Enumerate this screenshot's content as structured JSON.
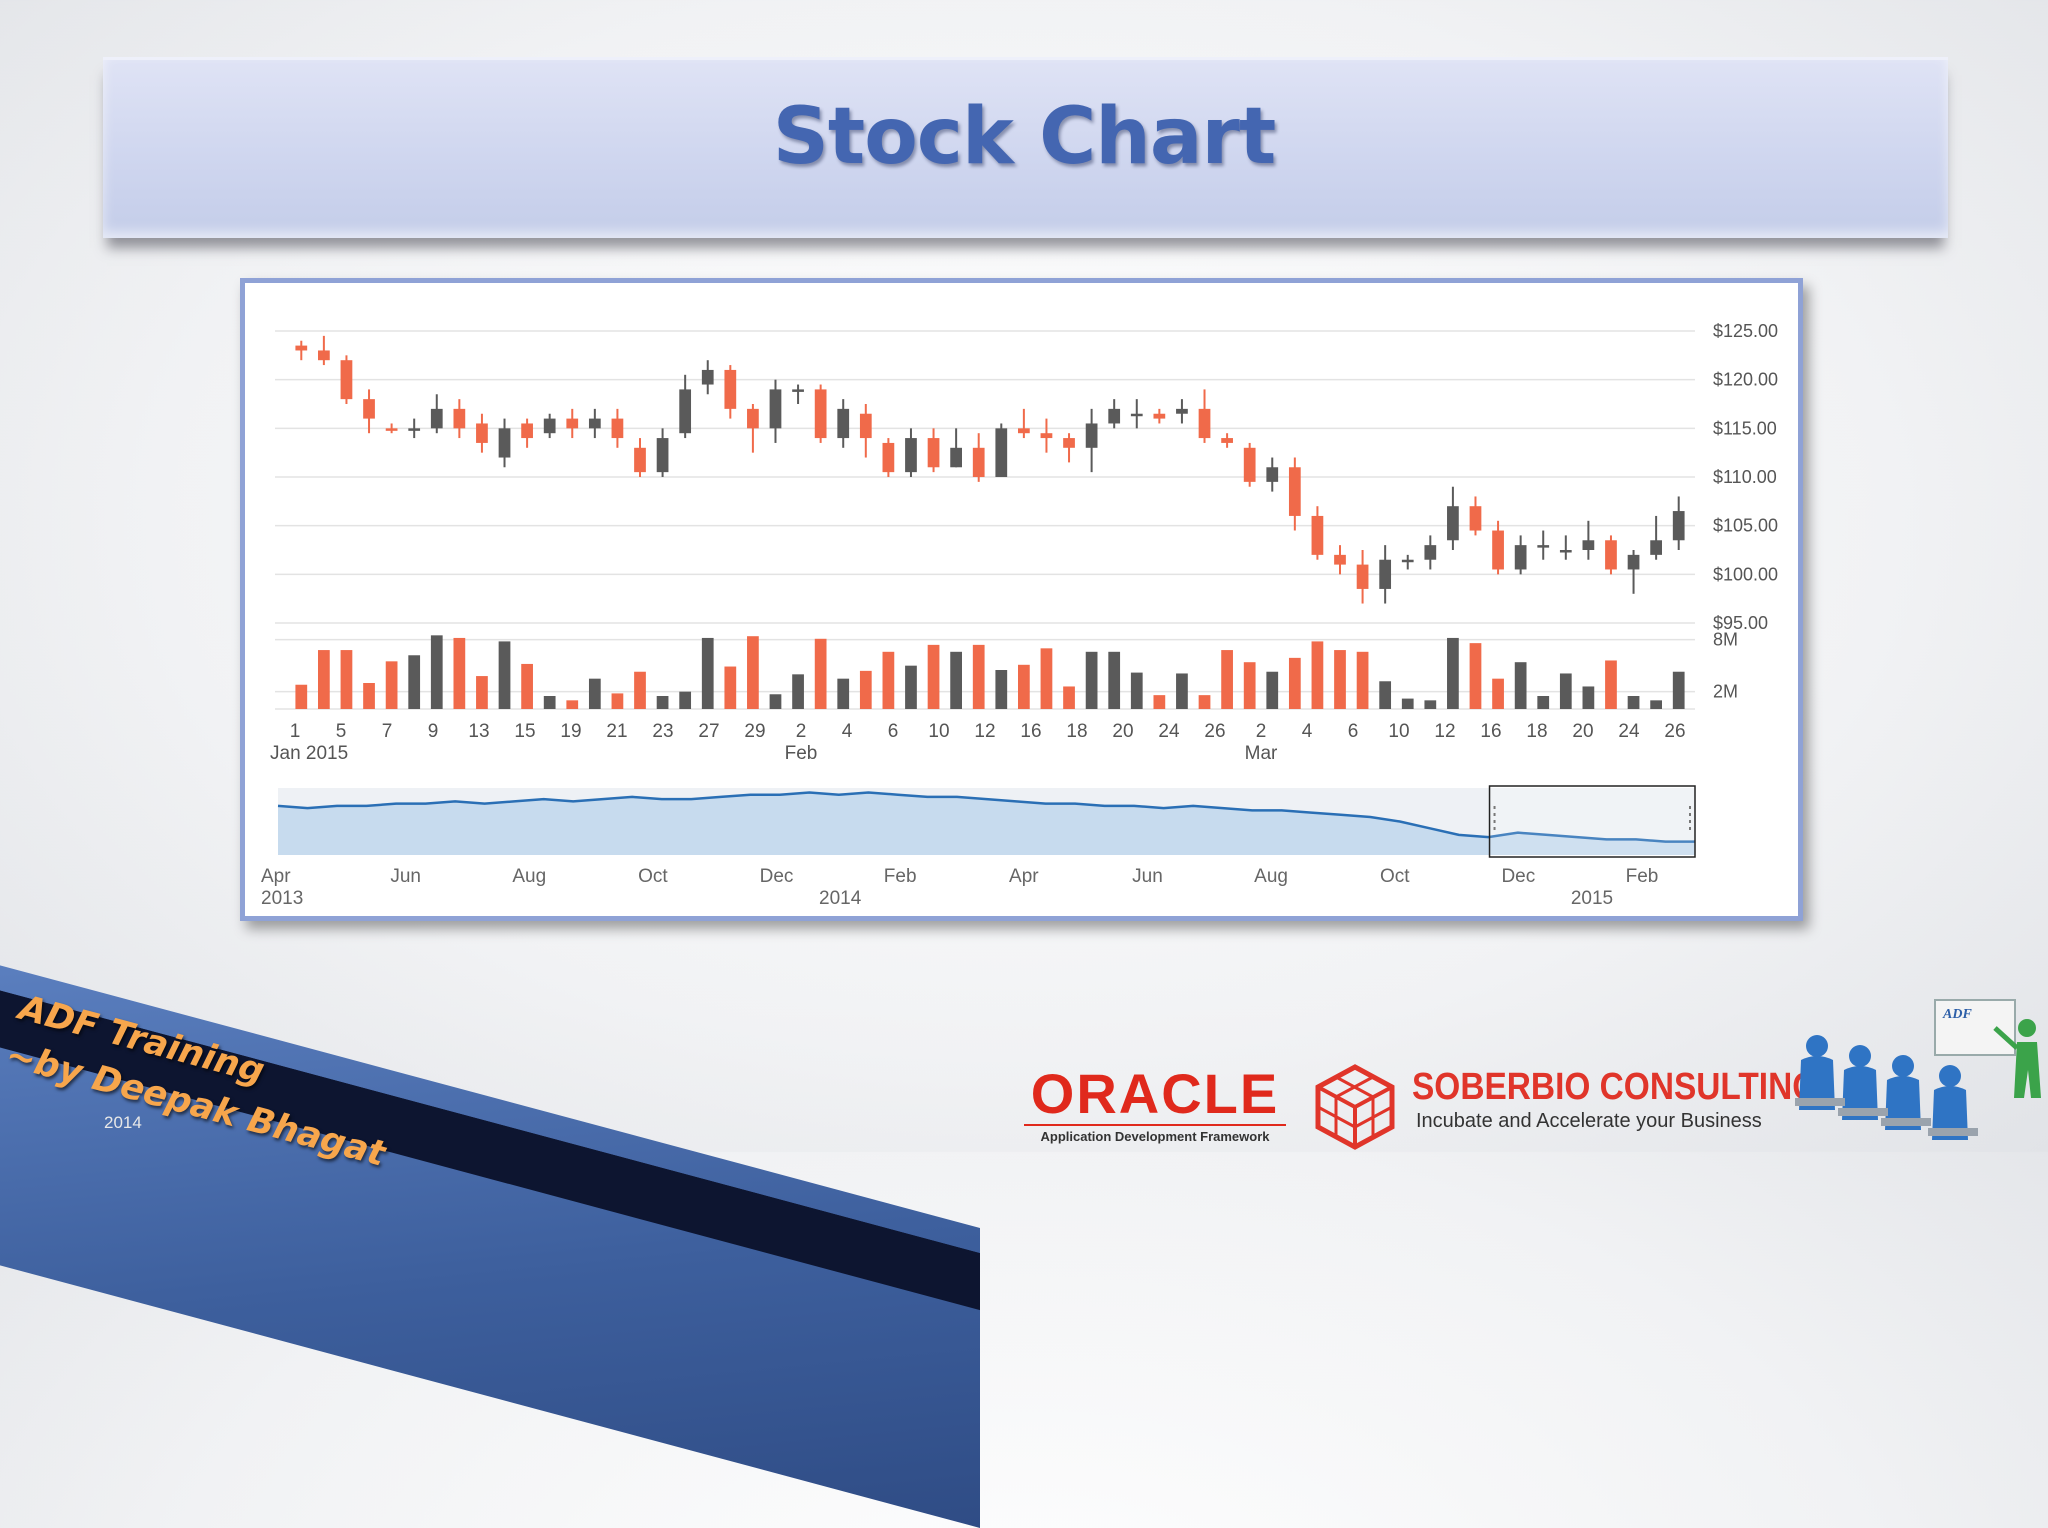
{
  "slide": {
    "title": "Stock Chart"
  },
  "colors": {
    "up": "#5a5a5a",
    "down": "#f06a4a",
    "overview_line": "#2a6fb5",
    "overview_fill": "#c7dbee",
    "title": "#4466b1"
  },
  "chart_data": {
    "type": "candlestick",
    "title": "",
    "y_axis": {
      "ticks": [
        "$125.00",
        "$120.00",
        "$115.00",
        "$110.00",
        "$105.00",
        "$100.00",
        "$95.00"
      ],
      "range": [
        95,
        125
      ]
    },
    "volume_axis": {
      "ticks": [
        "8M",
        "2M"
      ]
    },
    "x_labels": [
      "1",
      "5",
      "7",
      "9",
      "13",
      "15",
      "19",
      "21",
      "23",
      "27",
      "29",
      "2",
      "4",
      "6",
      "10",
      "12",
      "16",
      "18",
      "20",
      "24",
      "26",
      "2",
      "4",
      "6",
      "10",
      "12",
      "16",
      "18",
      "20",
      "24",
      "26"
    ],
    "x_sublabels": [
      {
        "at_index": 0,
        "text": "Jan 2015"
      },
      {
        "at_index": 11,
        "text": "Feb"
      },
      {
        "at_index": 21,
        "text": "Mar"
      }
    ],
    "candles": [
      {
        "o": 123.5,
        "c": 123.0,
        "h": 124.0,
        "l": 122.0,
        "v": 2.8
      },
      {
        "o": 123.0,
        "c": 122.0,
        "h": 124.5,
        "l": 121.5,
        "v": 6.8
      },
      {
        "o": 122.0,
        "c": 118.0,
        "h": 122.5,
        "l": 117.5,
        "v": 6.8
      },
      {
        "o": 118.0,
        "c": 116.0,
        "h": 119.0,
        "l": 114.5,
        "v": 3.0
      },
      {
        "o": 115.0,
        "c": 114.8,
        "h": 115.5,
        "l": 114.5,
        "v": 5.5
      },
      {
        "o": 114.8,
        "c": 115.0,
        "h": 116.0,
        "l": 114.0,
        "v": 6.2
      },
      {
        "o": 115.0,
        "c": 117.0,
        "h": 118.5,
        "l": 114.5,
        "v": 8.5
      },
      {
        "o": 117.0,
        "c": 115.0,
        "h": 118.0,
        "l": 114.0,
        "v": 8.2
      },
      {
        "o": 115.5,
        "c": 113.5,
        "h": 116.5,
        "l": 112.5,
        "v": 3.8
      },
      {
        "o": 112.0,
        "c": 115.0,
        "h": 116.0,
        "l": 111.0,
        "v": 7.8
      },
      {
        "o": 115.5,
        "c": 114.0,
        "h": 116.0,
        "l": 113.0,
        "v": 5.2
      },
      {
        "o": 114.5,
        "c": 116.0,
        "h": 116.5,
        "l": 114.0,
        "v": 1.5
      },
      {
        "o": 116.0,
        "c": 115.0,
        "h": 117.0,
        "l": 114.0,
        "v": 1.0
      },
      {
        "o": 115.0,
        "c": 116.0,
        "h": 117.0,
        "l": 114.0,
        "v": 3.5
      },
      {
        "o": 116.0,
        "c": 114.0,
        "h": 117.0,
        "l": 113.0,
        "v": 1.8
      },
      {
        "o": 113.0,
        "c": 110.5,
        "h": 114.0,
        "l": 110.0,
        "v": 4.3
      },
      {
        "o": 110.5,
        "c": 114.0,
        "h": 115.0,
        "l": 110.0,
        "v": 1.5
      },
      {
        "o": 114.5,
        "c": 119.0,
        "h": 120.5,
        "l": 114.0,
        "v": 2.0
      },
      {
        "o": 119.5,
        "c": 121.0,
        "h": 122.0,
        "l": 118.5,
        "v": 8.2
      },
      {
        "o": 121.0,
        "c": 117.0,
        "h": 121.5,
        "l": 116.0,
        "v": 4.9
      },
      {
        "o": 117.0,
        "c": 115.0,
        "h": 117.5,
        "l": 112.5,
        "v": 8.4
      },
      {
        "o": 115.0,
        "c": 119.0,
        "h": 120.0,
        "l": 113.5,
        "v": 1.7
      },
      {
        "o": 119.0,
        "c": 119.0,
        "h": 119.5,
        "l": 117.5,
        "v": 4.0
      },
      {
        "o": 119.0,
        "c": 114.0,
        "h": 119.5,
        "l": 113.5,
        "v": 8.1
      },
      {
        "o": 114.0,
        "c": 117.0,
        "h": 118.0,
        "l": 113.0,
        "v": 3.5
      },
      {
        "o": 116.5,
        "c": 114.0,
        "h": 117.5,
        "l": 112.0,
        "v": 4.4
      },
      {
        "o": 113.5,
        "c": 110.5,
        "h": 114.0,
        "l": 110.0,
        "v": 6.6
      },
      {
        "o": 110.5,
        "c": 114.0,
        "h": 115.0,
        "l": 110.0,
        "v": 5.0
      },
      {
        "o": 114.0,
        "c": 111.0,
        "h": 115.0,
        "l": 110.5,
        "v": 7.4
      },
      {
        "o": 111.0,
        "c": 113.0,
        "h": 115.0,
        "l": 111.0,
        "v": 6.6
      },
      {
        "o": 113.0,
        "c": 110.0,
        "h": 114.5,
        "l": 109.5,
        "v": 7.4
      },
      {
        "o": 110.0,
        "c": 115.0,
        "h": 115.5,
        "l": 110.0,
        "v": 4.5
      },
      {
        "o": 115.0,
        "c": 114.5,
        "h": 117.0,
        "l": 114.0,
        "v": 5.1
      },
      {
        "o": 114.5,
        "c": 114.0,
        "h": 116.0,
        "l": 112.5,
        "v": 7.0
      },
      {
        "o": 114.0,
        "c": 113.0,
        "h": 114.5,
        "l": 111.5,
        "v": 2.6
      },
      {
        "o": 113.0,
        "c": 115.5,
        "h": 117.0,
        "l": 110.5,
        "v": 6.6
      },
      {
        "o": 115.5,
        "c": 117.0,
        "h": 118.0,
        "l": 115.0,
        "v": 6.6
      },
      {
        "o": 116.5,
        "c": 116.5,
        "h": 118.0,
        "l": 115.0,
        "v": 4.2
      },
      {
        "o": 116.5,
        "c": 116.0,
        "h": 117.0,
        "l": 115.5,
        "v": 1.6
      },
      {
        "o": 116.5,
        "c": 117.0,
        "h": 118.0,
        "l": 115.5,
        "v": 4.1
      },
      {
        "o": 117.0,
        "c": 114.0,
        "h": 119.0,
        "l": 113.5,
        "v": 1.6
      },
      {
        "o": 114.0,
        "c": 113.5,
        "h": 114.5,
        "l": 113.0,
        "v": 6.8
      },
      {
        "o": 113.0,
        "c": 109.5,
        "h": 113.5,
        "l": 109.0,
        "v": 5.4
      },
      {
        "o": 109.5,
        "c": 111.0,
        "h": 112.0,
        "l": 108.5,
        "v": 4.3
      },
      {
        "o": 111.0,
        "c": 106.0,
        "h": 112.0,
        "l": 104.5,
        "v": 5.9
      },
      {
        "o": 106.0,
        "c": 102.0,
        "h": 107.0,
        "l": 101.5,
        "v": 7.8
      },
      {
        "o": 102.0,
        "c": 101.0,
        "h": 103.0,
        "l": 100.0,
        "v": 6.8
      },
      {
        "o": 101.0,
        "c": 98.5,
        "h": 102.5,
        "l": 97.0,
        "v": 6.6
      },
      {
        "o": 98.5,
        "c": 101.5,
        "h": 103.0,
        "l": 97.0,
        "v": 3.2
      },
      {
        "o": 101.5,
        "c": 101.5,
        "h": 102.0,
        "l": 100.5,
        "v": 1.2
      },
      {
        "o": 101.5,
        "c": 103.0,
        "h": 104.0,
        "l": 100.5,
        "v": 1.0
      },
      {
        "o": 103.5,
        "c": 107.0,
        "h": 109.0,
        "l": 102.5,
        "v": 8.2
      },
      {
        "o": 107.0,
        "c": 104.5,
        "h": 108.0,
        "l": 104.0,
        "v": 7.6
      },
      {
        "o": 104.5,
        "c": 100.5,
        "h": 105.5,
        "l": 100.0,
        "v": 3.5
      },
      {
        "o": 100.5,
        "c": 103.0,
        "h": 104.0,
        "l": 100.0,
        "v": 5.4
      },
      {
        "o": 103.0,
        "c": 103.0,
        "h": 104.5,
        "l": 101.5,
        "v": 1.5
      },
      {
        "o": 102.5,
        "c": 102.5,
        "h": 104.0,
        "l": 101.5,
        "v": 4.1
      },
      {
        "o": 102.5,
        "c": 103.5,
        "h": 105.5,
        "l": 101.5,
        "v": 2.6
      },
      {
        "o": 103.5,
        "c": 100.5,
        "h": 104.0,
        "l": 100.0,
        "v": 5.6
      },
      {
        "o": 100.5,
        "c": 102.0,
        "h": 102.5,
        "l": 98.0,
        "v": 1.5
      },
      {
        "o": 102.0,
        "c": 103.5,
        "h": 106.0,
        "l": 101.5,
        "v": 1.0
      },
      {
        "o": 103.5,
        "c": 106.5,
        "h": 108.0,
        "l": 102.5,
        "v": 4.3
      }
    ],
    "overview": {
      "x_labels": [
        {
          "month": "Apr",
          "year": "2013"
        },
        {
          "month": "Jun",
          "year": ""
        },
        {
          "month": "Aug",
          "year": ""
        },
        {
          "month": "Oct",
          "year": ""
        },
        {
          "month": "Dec",
          "year": ""
        },
        {
          "month": "Feb",
          "year": "2014"
        },
        {
          "month": "Apr",
          "year": ""
        },
        {
          "month": "Jun",
          "year": ""
        },
        {
          "month": "Aug",
          "year": ""
        },
        {
          "month": "Oct",
          "year": ""
        },
        {
          "month": "Dec",
          "year": ""
        },
        {
          "month": "Feb",
          "year": "2015"
        }
      ],
      "values": [
        92,
        91,
        92,
        92,
        93,
        93,
        94,
        93,
        94,
        95,
        94,
        95,
        96,
        95,
        95,
        96,
        97,
        97,
        98,
        97,
        98,
        97,
        96,
        96,
        95,
        94,
        93,
        93,
        92,
        92,
        91,
        92,
        91,
        90,
        90,
        89,
        88,
        87,
        85,
        82,
        79,
        78,
        80,
        79,
        78,
        77,
        77,
        76,
        76
      ],
      "range": [
        70,
        100
      ],
      "selection": {
        "start": 0.855,
        "end": 1.0
      }
    }
  },
  "footer": {
    "training_line1": "ADF Training",
    "training_line2": "~by Deepak Bhagat",
    "training_year": "2014",
    "oracle_word": "ORACLE",
    "oracle_sub": "Application Development Framework",
    "soberbio_name": "SOBERBIO CONSULTING",
    "soberbio_tagline": "Incubate and Accelerate your Business",
    "people_board_label": "ADF"
  }
}
